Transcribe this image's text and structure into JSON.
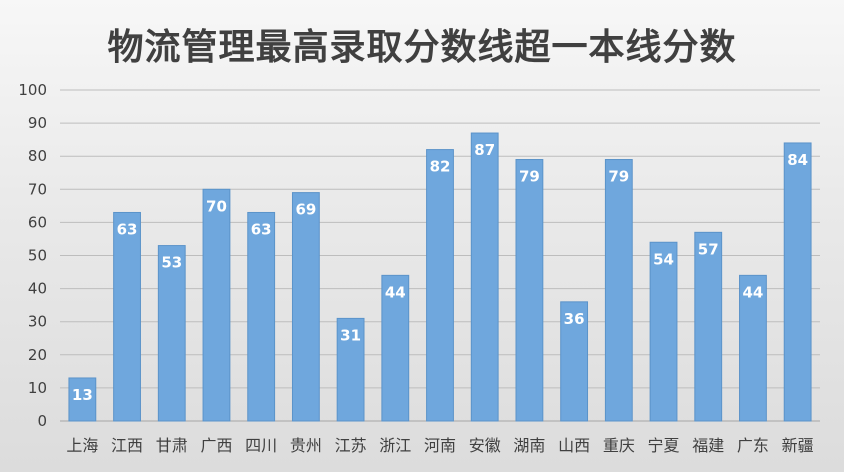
{
  "chart_data": {
    "type": "bar",
    "title": "物流管理最高录取分数线超一本线分数",
    "categories": [
      "上海",
      "江西",
      "甘肃",
      "广西",
      "四川",
      "贵州",
      "江苏",
      "浙江",
      "河南",
      "安徽",
      "湖南",
      "山西",
      "重庆",
      "宁夏",
      "福建",
      "广东",
      "新疆"
    ],
    "values": [
      13,
      63,
      53,
      70,
      63,
      69,
      31,
      44,
      82,
      87,
      79,
      36,
      79,
      54,
      57,
      44,
      84
    ],
    "ylim": [
      0,
      100
    ],
    "yticks": [
      "0",
      "10",
      "20",
      "30",
      "40",
      "50",
      "60",
      "70",
      "80",
      "90",
      "100"
    ],
    "xlabel": "",
    "ylabel": "",
    "grid": true,
    "colors": {
      "bar_fill": "#6fa7dd",
      "bar_stroke": "#5b93c9",
      "label": "#ffffff",
      "grid": "#bdbdbd",
      "axis_text": "#404040"
    }
  }
}
